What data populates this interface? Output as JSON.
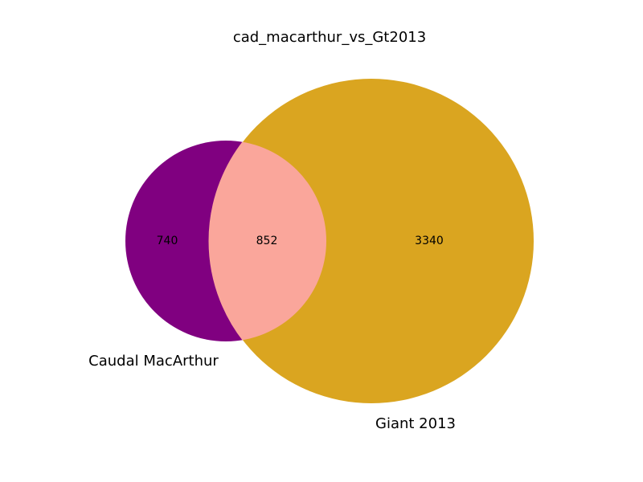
{
  "title": "cad_macarthur_vs_Gt2013",
  "sets": [
    {
      "name": "Caudal MacArthur",
      "only_count": "740",
      "color": "#800080"
    },
    {
      "name": "Giant 2013",
      "only_count": "3340",
      "color": "#DAA520"
    }
  ],
  "intersection": {
    "count": "852",
    "color": "#FAA69B"
  }
}
